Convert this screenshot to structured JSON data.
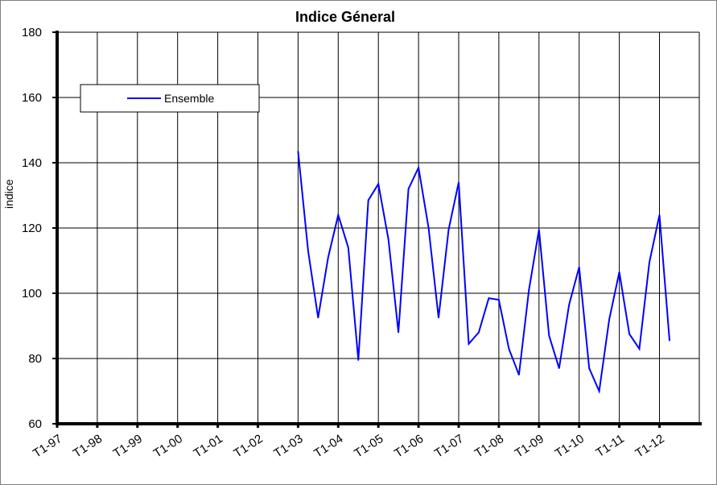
{
  "chart_data": {
    "type": "line",
    "title": "Indice Géneral",
    "xlabel": "",
    "ylabel": "indice",
    "ylim": [
      60,
      180
    ],
    "yticks": [
      60,
      80,
      100,
      120,
      140,
      160,
      180
    ],
    "categories": [
      "T1-97",
      "T1-98",
      "T1-99",
      "T1-00",
      "T1-01",
      "T1-02",
      "T1-03",
      "T1-04",
      "T1-05",
      "T1-06",
      "T1-07",
      "T1-08",
      "T1-09",
      "T1-10",
      "T1-11",
      "T1-12"
    ],
    "grid": true,
    "legend": {
      "position": "top-left",
      "entries": [
        "Ensemble"
      ]
    },
    "series": [
      {
        "name": "Ensemble",
        "color": "#0000ff",
        "points": [
          [
            "T1-03",
            143.5
          ],
          [
            "T2-03",
            113
          ],
          [
            "T3-03",
            92.5
          ],
          [
            "T4-03",
            111
          ],
          [
            "T1-04",
            124
          ],
          [
            "T2-04",
            114
          ],
          [
            "T3-04",
            79.5
          ],
          [
            "T4-04",
            128.5
          ],
          [
            "T1-05",
            133.5
          ],
          [
            "T2-05",
            116.5
          ],
          [
            "T3-05",
            88
          ],
          [
            "T4-05",
            132
          ],
          [
            "T1-06",
            138.5
          ],
          [
            "T2-06",
            120
          ],
          [
            "T3-06",
            92.5
          ],
          [
            "T4-06",
            119.5
          ],
          [
            "T1-07",
            134
          ],
          [
            "T2-07",
            84.5
          ],
          [
            "T3-07",
            88
          ],
          [
            "T4-07",
            98.5
          ],
          [
            "T1-08",
            98
          ],
          [
            "T2-08",
            83
          ],
          [
            "T3-08",
            75
          ],
          [
            "T4-08",
            101
          ],
          [
            "T1-09",
            119.5
          ],
          [
            "T2-09",
            87
          ],
          [
            "T3-09",
            77
          ],
          [
            "T4-09",
            96.5
          ],
          [
            "T1-10",
            108
          ],
          [
            "T2-10",
            77
          ],
          [
            "T3-10",
            70
          ],
          [
            "T4-10",
            92
          ],
          [
            "T1-11",
            106.5
          ],
          [
            "T2-11",
            87.5
          ],
          [
            "T3-11",
            83
          ],
          [
            "T4-11",
            109.5
          ],
          [
            "T1-12",
            124
          ],
          [
            "T2-12",
            85.5
          ]
        ]
      }
    ]
  }
}
